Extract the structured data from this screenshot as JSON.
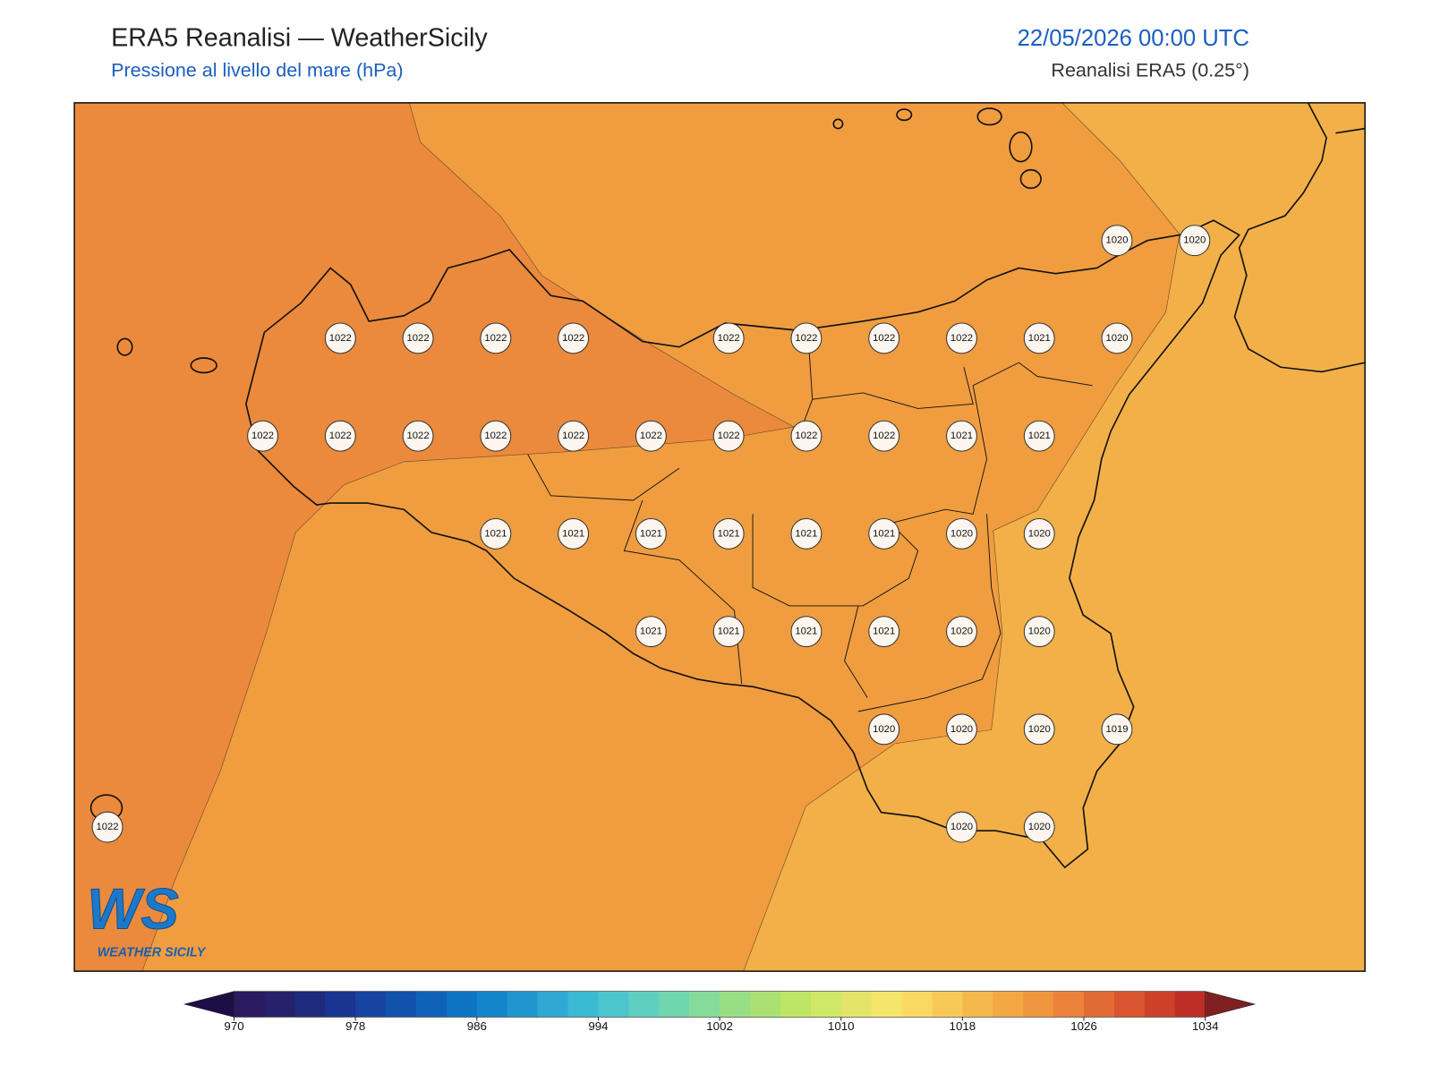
{
  "header": {
    "title": "ERA5 Reanalisi — WeatherSicily",
    "subtitle": "Pressione al livello del mare (hPa)",
    "date": "22/05/2026 00:00 UTC",
    "source": "Reanalisi ERA5 (0.25°)"
  },
  "pressure_grid": [
    [
      null,
      null,
      null,
      null,
      null,
      null,
      null,
      null,
      null,
      null,
      null,
      null,
      null,
      1020,
      1020
    ],
    [
      null,
      null,
      null,
      1022,
      1022,
      1022,
      1022,
      null,
      1022,
      1022,
      1022,
      1022,
      1021,
      1020,
      null
    ],
    [
      null,
      null,
      1022,
      1022,
      1022,
      1022,
      1022,
      1022,
      1022,
      1022,
      1022,
      1021,
      1021,
      null,
      null
    ],
    [
      null,
      null,
      null,
      null,
      null,
      1021,
      1021,
      1021,
      1021,
      1021,
      1021,
      1020,
      1020,
      null,
      null
    ],
    [
      null,
      null,
      null,
      null,
      null,
      null,
      null,
      1021,
      1021,
      1021,
      1021,
      1020,
      1020,
      null,
      null
    ],
    [
      null,
      null,
      null,
      null,
      null,
      null,
      null,
      null,
      null,
      null,
      1020,
      1020,
      1020,
      1019,
      null
    ],
    [
      1022,
      null,
      null,
      null,
      null,
      null,
      null,
      null,
      null,
      null,
      null,
      1020,
      1020,
      null,
      null
    ]
  ],
  "colorbar": {
    "limits": [
      970,
      1034
    ],
    "ticks": [
      970,
      978,
      986,
      994,
      1002,
      1010,
      1018,
      1026,
      1034
    ],
    "colors": [
      "#2a1b5e",
      "#25226b",
      "#1e2a7c",
      "#1a358f",
      "#1644a0",
      "#1152ad",
      "#0f62b8",
      "#0d74c4",
      "#1385cb",
      "#2096cf",
      "#2fa9d4",
      "#3bbad4",
      "#4cc6cc",
      "#5ecfc0",
      "#6fd6ae",
      "#85db99",
      "#98de85",
      "#abe173",
      "#bee566",
      "#d0e868",
      "#e2e56a",
      "#f6e56b",
      "#f9d962",
      "#f8c957",
      "#f5b84c",
      "#f3a844",
      "#ef963f",
      "#ea823b",
      "#e26b35",
      "#d9552f",
      "#cd4029",
      "#bd2d26"
    ],
    "under_color": "#1d0d45",
    "over_color": "#7f1f1f"
  },
  "logo": {
    "mark": "WS",
    "name": "WEATHER SICILY"
  }
}
